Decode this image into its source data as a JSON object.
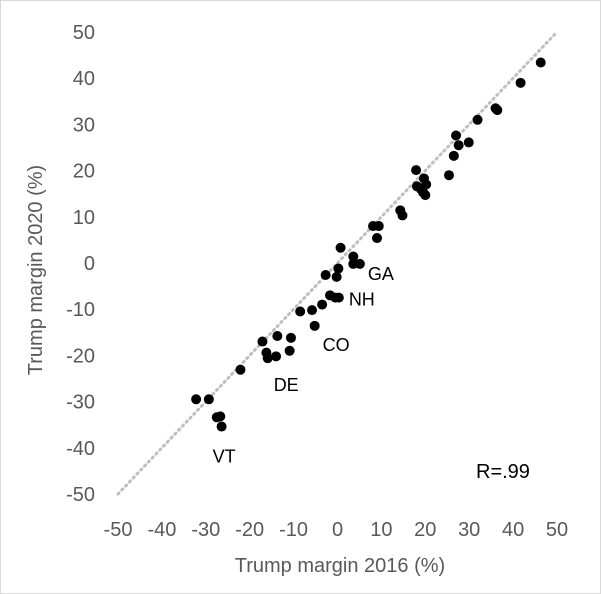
{
  "chart_data": {
    "type": "scatter",
    "title": "",
    "xlabel": "Trump margin 2016 (%)",
    "ylabel": "Trump margin 2020 (%)",
    "xlim": [
      -50,
      50
    ],
    "ylim": [
      -50,
      50
    ],
    "xticks": [
      "-50",
      "-40",
      "-30",
      "-20",
      "-10",
      "0",
      "10",
      "20",
      "30",
      "40",
      "50"
    ],
    "yticks": [
      "50",
      "40",
      "30",
      "20",
      "10",
      "0",
      "-10",
      "-20",
      "-30",
      "-40",
      "-50"
    ],
    "grid": false,
    "reference_line": {
      "style": "dotted",
      "color": "#bfbfbf",
      "from": [
        -50,
        -50
      ],
      "to": [
        50,
        50
      ]
    },
    "annotation": "R=.99",
    "point_color": "#000000",
    "points": [
      {
        "x": 46.3,
        "y": 43.4
      },
      {
        "x": 41.7,
        "y": 39.0
      },
      {
        "x": 36.0,
        "y": 33.5
      },
      {
        "x": 36.4,
        "y": 33.1
      },
      {
        "x": 31.9,
        "y": 31.0
      },
      {
        "x": 27.0,
        "y": 27.6
      },
      {
        "x": 29.9,
        "y": 26.1
      },
      {
        "x": 27.6,
        "y": 25.5
      },
      {
        "x": 26.5,
        "y": 23.2
      },
      {
        "x": 25.4,
        "y": 19.0
      },
      {
        "x": 17.9,
        "y": 20.1
      },
      {
        "x": 19.7,
        "y": 18.3
      },
      {
        "x": 18.1,
        "y": 16.6
      },
      {
        "x": 20.2,
        "y": 17.0
      },
      {
        "x": 19.0,
        "y": 16.0
      },
      {
        "x": 19.5,
        "y": 15.3
      },
      {
        "x": 20.0,
        "y": 14.7
      },
      {
        "x": 14.3,
        "y": 11.4
      },
      {
        "x": 14.8,
        "y": 10.3
      },
      {
        "x": 8.1,
        "y": 8.0
      },
      {
        "x": 9.4,
        "y": 8.0
      },
      {
        "x": 9.0,
        "y": 5.4
      },
      {
        "x": 0.7,
        "y": 3.3
      },
      {
        "x": 3.6,
        "y": 1.4
      },
      {
        "x": 0.2,
        "y": -1.2
      },
      {
        "x": 3.6,
        "y": -0.2
      },
      {
        "x": 5.1,
        "y": -0.2,
        "label": "GA"
      },
      {
        "x": -2.7,
        "y": -2.6
      },
      {
        "x": -0.2,
        "y": -3.0
      },
      {
        "x": -1.7,
        "y": -7.0
      },
      {
        "x": -0.5,
        "y": -7.5
      },
      {
        "x": -3.5,
        "y": -9.0
      },
      {
        "x": -5.8,
        "y": -10.2
      },
      {
        "x": -8.5,
        "y": -10.5
      },
      {
        "x": 0.3,
        "y": -7.5,
        "label": "NH"
      },
      {
        "x": -5.2,
        "y": -13.6,
        "label": "CO"
      },
      {
        "x": -10.6,
        "y": -16.2
      },
      {
        "x": -13.7,
        "y": -15.8
      },
      {
        "x": -17.1,
        "y": -17.0
      },
      {
        "x": -16.2,
        "y": -19.4
      },
      {
        "x": -14.0,
        "y": -20.2
      },
      {
        "x": -10.9,
        "y": -19.0
      },
      {
        "x": -15.9,
        "y": -20.6,
        "label": "DE"
      },
      {
        "x": -22.1,
        "y": -23.1
      },
      {
        "x": -32.2,
        "y": -29.5
      },
      {
        "x": -29.3,
        "y": -29.5
      },
      {
        "x": -27.5,
        "y": -33.4
      },
      {
        "x": -26.7,
        "y": -33.2
      },
      {
        "x": -26.4,
        "y": -35.4,
        "label": "VT"
      }
    ]
  }
}
